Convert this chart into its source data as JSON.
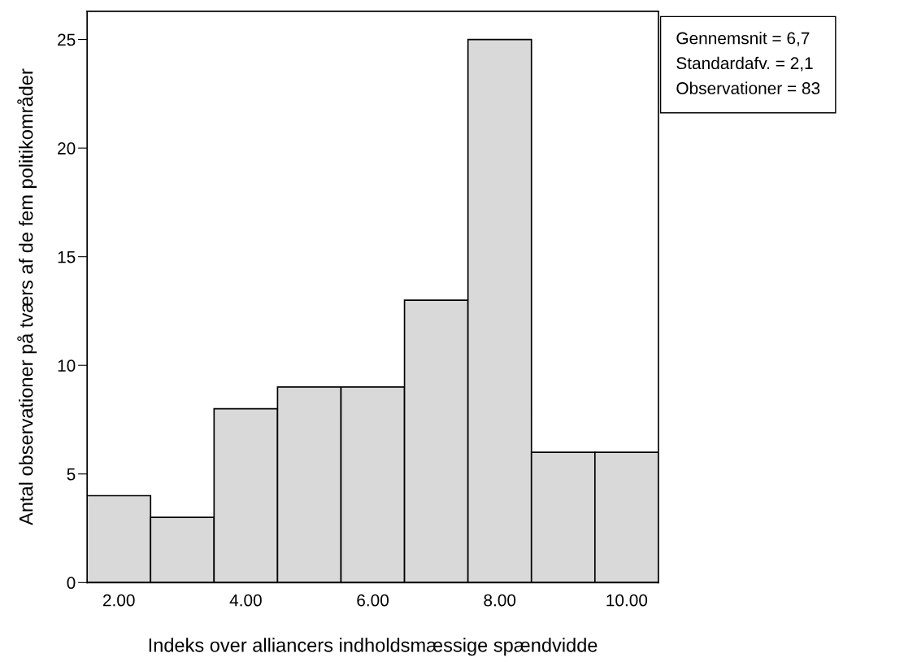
{
  "chart_data": {
    "type": "histogram",
    "xlabel": "Indeks over alliancers indholdsmæssige spændvidde",
    "ylabel": "Antal observationer på tværs af de fem politikområder",
    "bins": [
      1.5,
      2.5,
      3.5,
      4.5,
      5.5,
      6.5,
      7.5,
      8.5,
      9.5,
      10.5
    ],
    "values": [
      4,
      3,
      8,
      9,
      9,
      13,
      25,
      6,
      6
    ],
    "color": "#d9d9d9",
    "xlim": [
      1.5,
      10.5
    ],
    "xticks": [
      {
        "value": 2,
        "label": "2.00"
      },
      {
        "value": 4,
        "label": "4.00"
      },
      {
        "value": 6,
        "label": "6.00"
      },
      {
        "value": 8,
        "label": "8.00"
      },
      {
        "value": 10,
        "label": "10.00"
      }
    ],
    "ylim": [
      0,
      26.3
    ],
    "yticks": [
      0,
      5,
      10,
      15,
      20,
      25
    ],
    "grid": false,
    "annotations": [
      "Gennemsnit = 6,7",
      "Standardafv. = 2,1",
      "Observationer = 83"
    ]
  }
}
